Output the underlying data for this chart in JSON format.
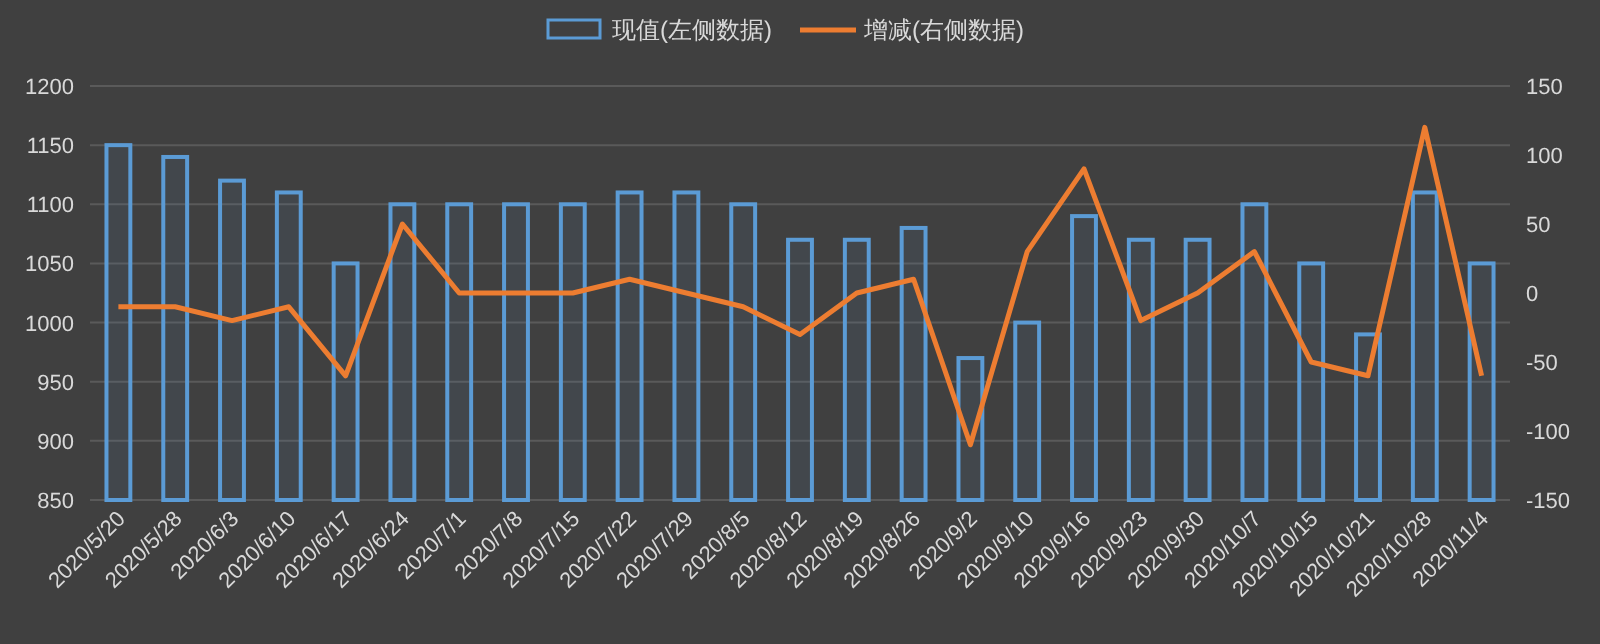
{
  "chart_data": {
    "type": "bar",
    "categories": [
      "2020/5/20",
      "2020/5/28",
      "2020/6/3",
      "2020/6/10",
      "2020/6/17",
      "2020/6/24",
      "2020/7/1",
      "2020/7/8",
      "2020/7/15",
      "2020/7/22",
      "2020/7/29",
      "2020/8/5",
      "2020/8/12",
      "2020/8/19",
      "2020/8/26",
      "2020/9/2",
      "2020/9/10",
      "2020/9/16",
      "2020/9/23",
      "2020/9/30",
      "2020/10/7",
      "2020/10/15",
      "2020/10/21",
      "2020/10/28",
      "2020/11/4"
    ],
    "series": [
      {
        "name": "现值(左侧数据)",
        "color": "#5b9bd5",
        "values": [
          1150,
          1140,
          1120,
          1110,
          1050,
          1100,
          1100,
          1100,
          1100,
          1110,
          1110,
          1100,
          1070,
          1070,
          1080,
          970,
          1000,
          1090,
          1070,
          1070,
          1100,
          1050,
          990,
          1110,
          1050
        ]
      },
      {
        "name": "增减(右侧数据)",
        "type": "line",
        "axis": "y2",
        "color": "#ed7d31",
        "values": [
          -10,
          -10,
          -20,
          -10,
          -60,
          50,
          0,
          0,
          0,
          10,
          0,
          -10,
          -30,
          0,
          10,
          -110,
          30,
          90,
          -20,
          0,
          30,
          -50,
          -60,
          120,
          -60
        ]
      }
    ],
    "ylim": [
      850,
      1200
    ],
    "yticks": [
      850,
      900,
      950,
      1000,
      1050,
      1100,
      1150,
      1200
    ],
    "y2lim": [
      -150,
      150
    ],
    "y2ticks": [
      -150,
      -100,
      -50,
      0,
      50,
      100,
      150
    ],
    "grid": "y",
    "legend": "top",
    "marker": "none",
    "line_style": "solid"
  }
}
